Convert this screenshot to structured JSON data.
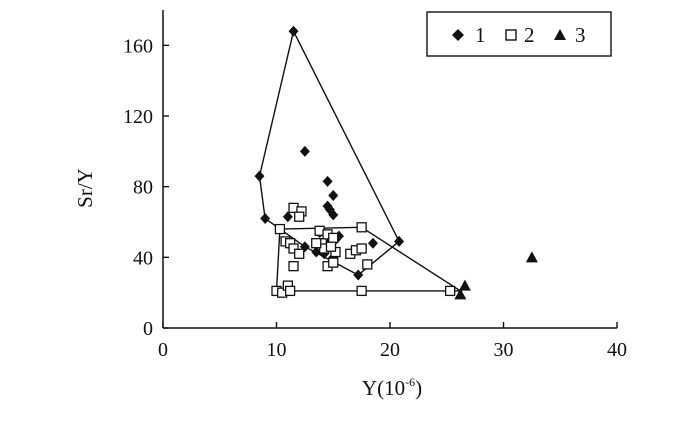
{
  "chart_data": {
    "type": "scatter",
    "xlabel": "Y(10",
    "xlabel_sup": "-6",
    "xlabel_close": ")",
    "ylabel": "Sr/Y",
    "xlim": [
      0,
      40
    ],
    "ylim": [
      0,
      180
    ],
    "x_ticks": [
      0,
      10,
      20,
      30,
      40
    ],
    "y_ticks": [
      0,
      40,
      80,
      120,
      160
    ],
    "x_tick_labels": [
      "0",
      "10",
      "20",
      "30",
      "40"
    ],
    "y_tick_labels": [
      "0",
      "40",
      "80",
      "120",
      "160"
    ],
    "legend_position": "top-right",
    "series": [
      {
        "name": "1",
        "marker": "diamond",
        "color": "#111111",
        "points": [
          [
            11.5,
            168
          ],
          [
            8.5,
            86
          ],
          [
            9.0,
            62
          ],
          [
            12.5,
            100
          ],
          [
            14.5,
            83
          ],
          [
            15.0,
            75
          ],
          [
            14.5,
            69
          ],
          [
            14.7,
            67
          ],
          [
            15.0,
            64
          ],
          [
            12.5,
            46
          ],
          [
            13.8,
            54
          ],
          [
            14.5,
            51
          ],
          [
            15.2,
            50
          ],
          [
            15.5,
            52
          ],
          [
            14.8,
            47
          ],
          [
            13.5,
            43
          ],
          [
            14.2,
            42
          ],
          [
            15.0,
            40
          ],
          [
            18.5,
            48
          ],
          [
            17.2,
            30
          ],
          [
            18.0,
            36
          ],
          [
            20.8,
            49
          ],
          [
            11.0,
            63
          ],
          [
            12.0,
            64
          ]
        ]
      },
      {
        "name": "2",
        "marker": "square",
        "color": "#111111",
        "points": [
          [
            11.5,
            68
          ],
          [
            12.2,
            66
          ],
          [
            12.0,
            63
          ],
          [
            10.3,
            56
          ],
          [
            10.8,
            49
          ],
          [
            11.2,
            48
          ],
          [
            11.5,
            45
          ],
          [
            12.0,
            42
          ],
          [
            11.5,
            35
          ],
          [
            13.8,
            55
          ],
          [
            14.0,
            48
          ],
          [
            14.2,
            45
          ],
          [
            14.5,
            53
          ],
          [
            15.0,
            51
          ],
          [
            15.2,
            43
          ],
          [
            14.5,
            35
          ],
          [
            15.0,
            37
          ],
          [
            16.5,
            42
          ],
          [
            17.0,
            44
          ],
          [
            17.5,
            57
          ],
          [
            17.5,
            45
          ],
          [
            18.0,
            36
          ],
          [
            10.0,
            21
          ],
          [
            10.5,
            20
          ],
          [
            11.0,
            24
          ],
          [
            11.2,
            21
          ],
          [
            17.5,
            21
          ],
          [
            25.3,
            21
          ],
          [
            14.8,
            46
          ],
          [
            13.5,
            48
          ]
        ]
      },
      {
        "name": "3",
        "marker": "triangle",
        "color": "#111111",
        "points": [
          [
            26.2,
            19
          ],
          [
            26.6,
            24
          ],
          [
            32.5,
            40
          ]
        ]
      }
    ],
    "outlines": [
      [
        [
          11.5,
          168
        ],
        [
          20.8,
          49
        ],
        [
          17.2,
          30
        ],
        [
          12.5,
          46
        ],
        [
          9.0,
          62
        ],
        [
          8.5,
          86
        ],
        [
          11.5,
          168
        ]
      ],
      [
        [
          10.3,
          56
        ],
        [
          17.5,
          57
        ],
        [
          26.2,
          21
        ],
        [
          10.0,
          21
        ],
        [
          10.3,
          56
        ]
      ]
    ]
  }
}
